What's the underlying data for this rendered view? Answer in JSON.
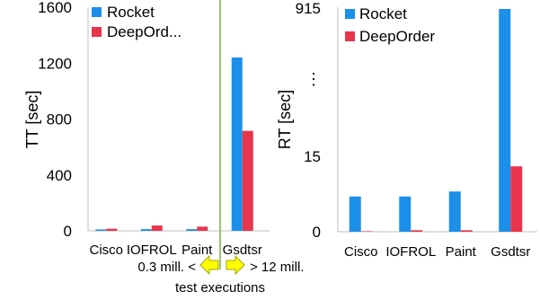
{
  "colors": {
    "rocket": "#1c8fea",
    "deeporder": "#e8344c",
    "divider": "#7bb04a",
    "arrow_fill": "#ffff00",
    "arrow_stroke": "#a6a600",
    "axis": "#bfbfbf"
  },
  "chart_data": [
    {
      "type": "bar",
      "ylabel": "TT [sec]",
      "categories": [
        "Cisco",
        "IOFROL",
        "Paint",
        "Gsdtsr"
      ],
      "series": [
        {
          "name": "Rocket",
          "values": [
            10,
            12,
            12,
            1240
          ]
        },
        {
          "name": "DeepOrd...",
          "values": [
            15,
            38,
            30,
            715
          ]
        }
      ],
      "ylim": [
        0,
        1600
      ],
      "yticks": [
        "0",
        "400",
        "800",
        "1200",
        "1600"
      ],
      "legend": "top-left",
      "grid": false
    },
    {
      "type": "bar",
      "ylabel": "RT [sec]",
      "categories": [
        "Cisco",
        "IOFROL",
        "Paint",
        "Gsdtsr"
      ],
      "series": [
        {
          "name": "Rocket",
          "values": [
            7,
            7,
            8,
            915
          ]
        },
        {
          "name": "DeepOrder",
          "values": [
            0.1,
            0.3,
            0.3,
            13
          ]
        }
      ],
      "axis_break": {
        "lower": [
          0,
          15
        ],
        "marker": "⋮",
        "top_label": "915"
      },
      "yticks": [
        "0",
        "15",
        "915"
      ],
      "legend": "top-left",
      "grid": false
    }
  ],
  "annotation": {
    "left_text": "0.3 mill. <",
    "right_text": "> 12 mill.",
    "caption": "test executions"
  }
}
